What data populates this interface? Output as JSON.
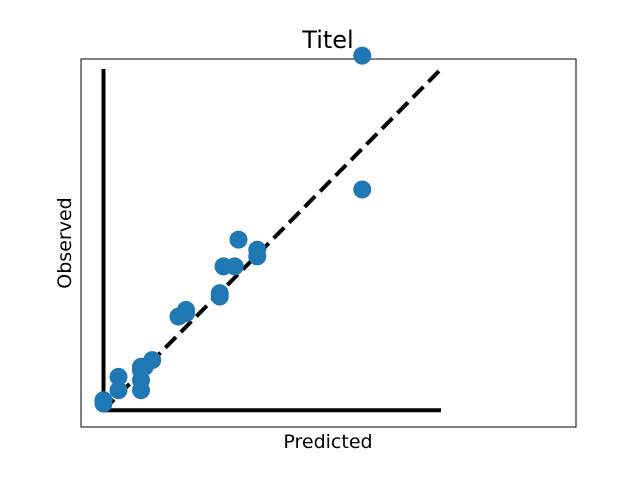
{
  "chart_data": {
    "type": "scatter",
    "title": "Titel",
    "xlabel": "Predicted",
    "ylabel": "Observed",
    "xlim": [
      -0.06,
      1.26
    ],
    "ylim": [
      -0.05,
      1.05
    ],
    "grid": false,
    "ticks_visible": false,
    "x": [
      0.0,
      0.0,
      0.04,
      0.04,
      0.1,
      0.1,
      0.1,
      0.1,
      0.11,
      0.13,
      0.2,
      0.22,
      0.22,
      0.31,
      0.31,
      0.32,
      0.35,
      0.36,
      0.41,
      0.41,
      0.69,
      0.69
    ],
    "y": [
      0.02,
      0.03,
      0.06,
      0.1,
      0.06,
      0.09,
      0.12,
      0.13,
      0.13,
      0.15,
      0.28,
      0.29,
      0.3,
      0.34,
      0.35,
      0.43,
      0.43,
      0.51,
      0.46,
      0.48,
      0.66,
      1.06
    ],
    "reference_lines": [
      {
        "style": "dashed",
        "color": "#000000",
        "x": [
          0.0,
          0.9
        ],
        "y": [
          0.0,
          1.02
        ]
      },
      {
        "style": "solid",
        "color": "#000000",
        "x": [
          0.0,
          0.0
        ],
        "y": [
          0.0,
          1.02
        ]
      },
      {
        "style": "solid",
        "color": "#000000",
        "x": [
          0.0,
          0.9
        ],
        "y": [
          0.0,
          0.0
        ]
      }
    ],
    "colors": {
      "points": "#1f77b4",
      "lines": "#000000",
      "frame": "#000000"
    }
  }
}
